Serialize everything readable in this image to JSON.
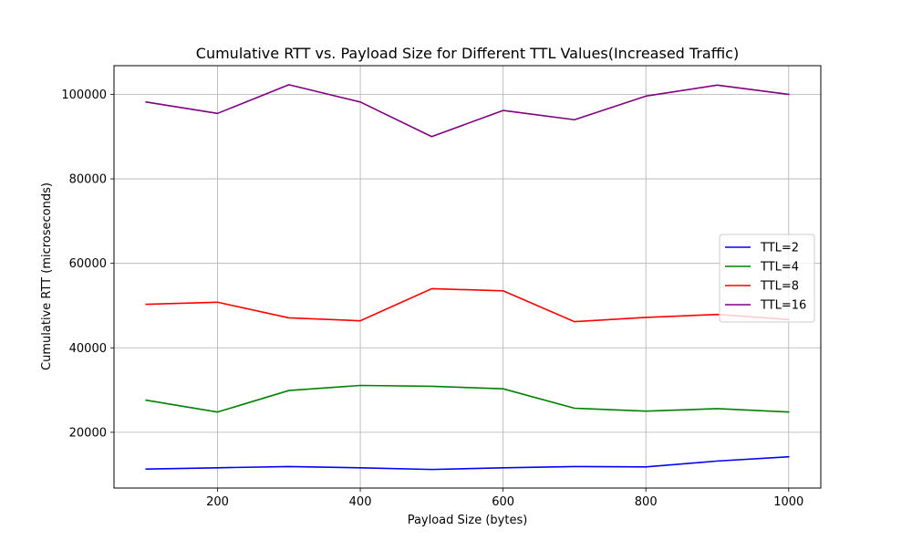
{
  "chart_data": {
    "type": "line",
    "title": "Cumulative RTT vs. Payload Size for Different TTL Values(Increased Traffic)",
    "xlabel": "Payload Size (bytes)",
    "ylabel": "Cumulative RTT (microseconds)",
    "x": [
      100,
      200,
      300,
      400,
      500,
      600,
      700,
      800,
      900,
      1000
    ],
    "xlim": [
      55,
      1045
    ],
    "ylim": [
      6800,
      106800
    ],
    "xticks": [
      200,
      400,
      600,
      800,
      1000
    ],
    "yticks": [
      20000,
      40000,
      60000,
      80000,
      100000
    ],
    "grid": true,
    "legend_position": "center-right",
    "series": [
      {
        "name": "TTL=2",
        "color": "#0000ff",
        "values": [
          11300,
          11600,
          11900,
          11600,
          11200,
          11600,
          11900,
          11800,
          13200,
          14200
        ]
      },
      {
        "name": "TTL=4",
        "color": "#008000",
        "values": [
          27600,
          24800,
          29900,
          31100,
          30900,
          30300,
          25700,
          25000,
          25600,
          24800
        ]
      },
      {
        "name": "TTL=8",
        "color": "#ff0000",
        "values": [
          50300,
          50800,
          47100,
          46400,
          54000,
          53500,
          46200,
          47200,
          47900,
          46700
        ]
      },
      {
        "name": "TTL=16",
        "color": "#800080",
        "values": [
          98200,
          95500,
          102300,
          98200,
          90000,
          96200,
          94000,
          99600,
          102200,
          100000
        ]
      }
    ]
  }
}
